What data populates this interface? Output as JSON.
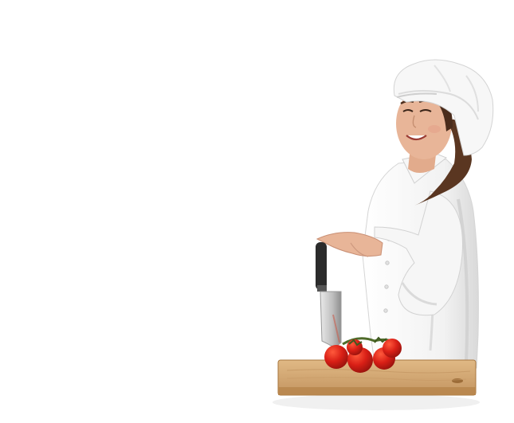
{
  "image": {
    "background": "#ffffff",
    "subjects": [
      "chef-woman",
      "chef-hat",
      "chef-jacket",
      "kitchen-knife",
      "cutting-board",
      "tomatoes"
    ]
  },
  "colors": {
    "chef_white": "#f4f4f4",
    "chef_shade": "#dedede",
    "skin": "#e8b598",
    "hair": "#5a3621",
    "board": "#d4aa74",
    "board_dark": "#b98b55",
    "tomato": "#d91f16",
    "tomato_dark": "#a3140f",
    "knife_blade": "#cfcfcf",
    "knife_handle": "#2b2b2b",
    "vine": "#4f6b2a"
  }
}
